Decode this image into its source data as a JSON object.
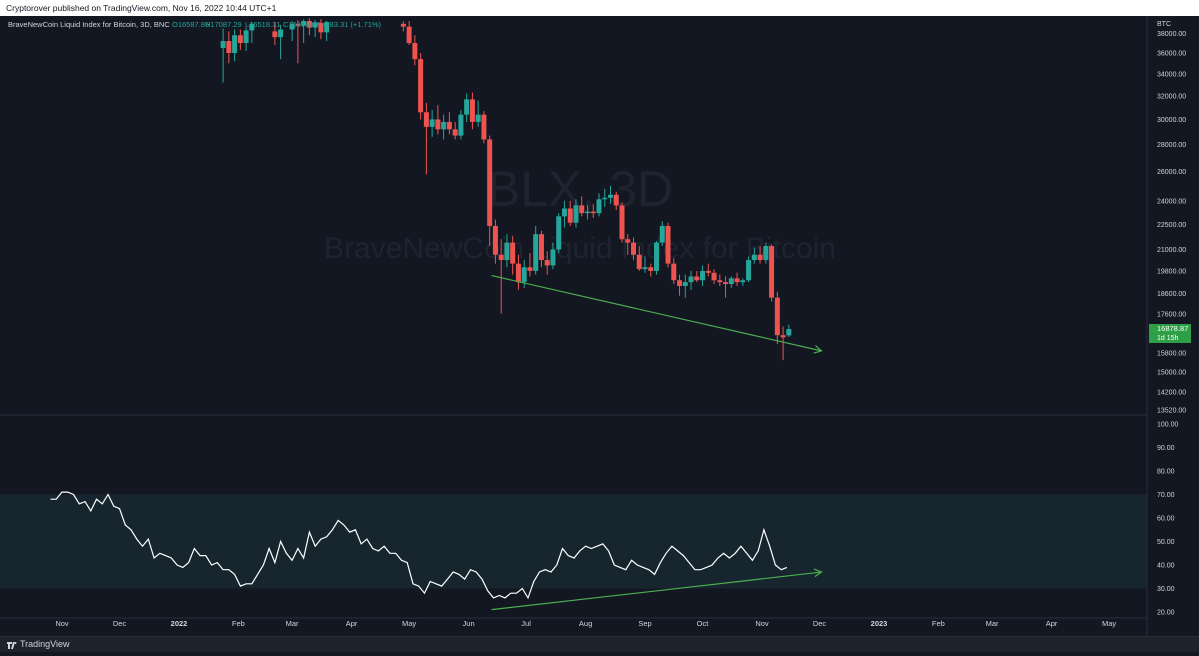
{
  "header": {
    "published_text": "Cryptorover published on TradingView.com, Nov 16, 2022 10:44 UTC+1"
  },
  "legend": {
    "symbol": "BraveNewCoin Liquid Index for Bitcoin, 3D, BNC",
    "open": "O16587.85",
    "high": "H17087.29",
    "low": "L16518.31",
    "close": "C16878.87",
    "change": "+283.31 (+1.71%)"
  },
  "watermark": {
    "ticker": "BLX, 3D",
    "name": "BraveNewCoin Liquid Index for Bitcoin"
  },
  "price_axis": {
    "currency": "BTC",
    "ticks": [
      "38000.00",
      "36000.00",
      "34000.00",
      "32000.00",
      "30000.00",
      "28000.00",
      "26000.00",
      "24000.00",
      "22500.00",
      "21000.00",
      "19800.00",
      "18600.00",
      "17600.00",
      "16800.00",
      "15800.00",
      "15000.00",
      "14200.00",
      "13520.00"
    ],
    "last_price": "16878.87",
    "countdown": "1d 15h"
  },
  "rsi_axis": {
    "ticks": [
      "100.00",
      "90.00",
      "80.00",
      "70.00",
      "60.00",
      "50.00",
      "40.00",
      "30.00",
      "20.00"
    ]
  },
  "time_axis": {
    "ticks": [
      "Nov",
      "Dec",
      "2022",
      "Feb",
      "Mar",
      "Apr",
      "May",
      "Jun",
      "Jul",
      "Aug",
      "Sep",
      "Oct",
      "Nov",
      "Dec",
      "2023",
      "Feb",
      "Mar",
      "Apr",
      "May"
    ]
  },
  "footer": {
    "brand": "TradingView"
  },
  "colors": {
    "up": "#26a69a",
    "down": "#ef5350",
    "green_line": "#4caf50",
    "rsi_band": "#17262e",
    "rsi_line": "#ffffff"
  },
  "chart_data": {
    "type": "candlestick",
    "title": "BraveNewCoin Liquid Index for Bitcoin, 3D, BNC",
    "y_scale": "log",
    "price_range": [
      13520,
      39000
    ],
    "candles": [
      [
        "2022-01-24",
        36500,
        38500,
        33200,
        37200
      ],
      [
        "2022-01-27",
        37200,
        38200,
        35000,
        36000
      ],
      [
        "2022-01-30",
        36000,
        38400,
        35200,
        37800
      ],
      [
        "2022-02-02",
        37800,
        38400,
        36300,
        37000
      ],
      [
        "2022-02-05",
        37000,
        38600,
        36200,
        38300
      ],
      [
        "2022-02-08",
        38300,
        39200,
        37000,
        39000
      ],
      [
        "2022-02-20",
        38200,
        39200,
        36800,
        37600
      ],
      [
        "2022-02-23",
        37600,
        38900,
        35400,
        38400
      ],
      [
        "2022-03-01",
        38400,
        39300,
        37200,
        39000
      ],
      [
        "2022-03-04",
        39000,
        39400,
        35000,
        38800
      ],
      [
        "2022-03-07",
        38800,
        39500,
        37000,
        39300
      ],
      [
        "2022-03-10",
        39300,
        39600,
        37800,
        38600
      ],
      [
        "2022-03-13",
        38600,
        39400,
        37600,
        39100
      ],
      [
        "2022-03-16",
        39100,
        39500,
        37400,
        38100
      ],
      [
        "2022-03-19",
        38100,
        39300,
        37200,
        39200
      ],
      [
        "2022-04-28",
        39000,
        39300,
        38200,
        38700
      ],
      [
        "2022-05-01",
        38700,
        39300,
        36800,
        37000
      ],
      [
        "2022-05-04",
        37000,
        37800,
        34800,
        35400
      ],
      [
        "2022-05-07",
        35400,
        36000,
        30000,
        30600
      ],
      [
        "2022-05-10",
        30600,
        31400,
        25800,
        29400
      ],
      [
        "2022-05-13",
        29400,
        30800,
        28600,
        30000
      ],
      [
        "2022-05-16",
        30000,
        31200,
        28800,
        29200
      ],
      [
        "2022-05-19",
        29200,
        30400,
        28400,
        29800
      ],
      [
        "2022-05-22",
        29800,
        30600,
        28800,
        29200
      ],
      [
        "2022-05-25",
        29200,
        29800,
        28400,
        28700
      ],
      [
        "2022-05-28",
        28700,
        30800,
        28400,
        30400
      ],
      [
        "2022-05-31",
        30400,
        32200,
        29800,
        31700
      ],
      [
        "2022-06-03",
        31700,
        32300,
        29200,
        29800
      ],
      [
        "2022-06-06",
        29800,
        31600,
        29400,
        30400
      ],
      [
        "2022-06-09",
        30400,
        30700,
        28100,
        28400
      ],
      [
        "2022-06-12",
        28400,
        28700,
        21200,
        22400
      ],
      [
        "2022-06-15",
        22400,
        22800,
        20200,
        20700
      ],
      [
        "2022-06-18",
        20700,
        21600,
        17600,
        20400
      ],
      [
        "2022-06-21",
        20400,
        21900,
        20000,
        21400
      ],
      [
        "2022-06-24",
        21400,
        21800,
        19600,
        20200
      ],
      [
        "2022-06-27",
        20200,
        20700,
        18800,
        19200
      ],
      [
        "2022-06-30",
        19200,
        20400,
        18900,
        20000
      ],
      [
        "2022-07-03",
        20000,
        20800,
        19500,
        19800
      ],
      [
        "2022-07-06",
        19800,
        22400,
        19600,
        21900
      ],
      [
        "2022-07-09",
        21900,
        22100,
        20000,
        20400
      ],
      [
        "2022-07-12",
        20400,
        20900,
        19600,
        20100
      ],
      [
        "2022-07-15",
        20100,
        21400,
        19900,
        21000
      ],
      [
        "2022-07-18",
        21000,
        23200,
        20800,
        23000
      ],
      [
        "2022-07-21",
        23000,
        24000,
        22300,
        23500
      ],
      [
        "2022-07-24",
        23500,
        24000,
        22400,
        22600
      ],
      [
        "2022-07-27",
        22600,
        24100,
        22300,
        23700
      ],
      [
        "2022-07-30",
        23700,
        24300,
        23000,
        23200
      ],
      [
        "2022-08-02",
        23200,
        23700,
        22800,
        23300
      ],
      [
        "2022-08-05",
        23300,
        23800,
        22900,
        23200
      ],
      [
        "2022-08-08",
        23200,
        24500,
        23000,
        24100
      ],
      [
        "2022-08-11",
        24100,
        24800,
        23600,
        24200
      ],
      [
        "2022-08-14",
        24200,
        25000,
        23800,
        24400
      ],
      [
        "2022-08-17",
        24400,
        24600,
        23400,
        23700
      ],
      [
        "2022-08-20",
        23700,
        23900,
        21400,
        21600
      ],
      [
        "2022-08-23",
        21600,
        21900,
        20700,
        21400
      ],
      [
        "2022-08-26",
        21400,
        21700,
        20400,
        20700
      ],
      [
        "2022-08-29",
        20700,
        21200,
        19800,
        19900
      ],
      [
        "2022-09-01",
        19900,
        20600,
        19700,
        20000
      ],
      [
        "2022-09-04",
        20000,
        20200,
        19500,
        19800
      ],
      [
        "2022-09-07",
        19800,
        21500,
        19600,
        21400
      ],
      [
        "2022-09-10",
        21400,
        22700,
        21200,
        22400
      ],
      [
        "2022-09-13",
        22400,
        22600,
        20000,
        20200
      ],
      [
        "2022-09-16",
        20200,
        20500,
        19100,
        19300
      ],
      [
        "2022-09-19",
        19300,
        19600,
        18500,
        19000
      ],
      [
        "2022-09-22",
        19000,
        19600,
        18400,
        19200
      ],
      [
        "2022-09-25",
        19200,
        19800,
        18800,
        19500
      ],
      [
        "2022-09-28",
        19500,
        19800,
        19200,
        19300
      ],
      [
        "2022-10-01",
        19300,
        20100,
        19000,
        19800
      ],
      [
        "2022-10-04",
        19800,
        20200,
        19500,
        19700
      ],
      [
        "2022-10-07",
        19700,
        19900,
        19100,
        19300
      ],
      [
        "2022-10-10",
        19300,
        19600,
        19000,
        19200
      ],
      [
        "2022-10-13",
        19200,
        19500,
        18400,
        19100
      ],
      [
        "2022-10-16",
        19100,
        19500,
        18900,
        19400
      ],
      [
        "2022-10-19",
        19400,
        19700,
        19000,
        19200
      ],
      [
        "2022-10-22",
        19200,
        19400,
        19000,
        19300
      ],
      [
        "2022-10-25",
        19300,
        20600,
        19200,
        20400
      ],
      [
        "2022-10-28",
        20400,
        21100,
        20200,
        20700
      ],
      [
        "2022-10-31",
        20700,
        21200,
        20200,
        20400
      ],
      [
        "2022-11-03",
        20400,
        21400,
        20200,
        21200
      ],
      [
        "2022-11-06",
        21200,
        21300,
        18200,
        18400
      ],
      [
        "2022-11-09",
        18400,
        18700,
        16200,
        16600
      ],
      [
        "2022-11-12",
        16600,
        17000,
        15500,
        16500
      ],
      [
        "2022-11-15",
        16588,
        17087,
        16518,
        16879
      ]
    ],
    "trendlines": [
      {
        "panel": "price",
        "from": [
          "2022-06-13",
          19550
        ],
        "to": [
          "2022-12-02",
          15900
        ]
      },
      {
        "panel": "rsi",
        "from": [
          "2022-06-13",
          21
        ],
        "to": [
          "2022-12-02",
          37
        ]
      }
    ],
    "rsi": {
      "band": [
        30,
        70
      ],
      "x": [
        "2021-10-26",
        "2021-10-29",
        "2021-11-01",
        "2021-11-04",
        "2021-11-07",
        "2021-11-10",
        "2021-11-13",
        "2021-11-16",
        "2021-11-19",
        "2021-11-22",
        "2021-11-25",
        "2021-11-28",
        "2021-12-01",
        "2021-12-04",
        "2021-12-07",
        "2021-12-10",
        "2021-12-13",
        "2021-12-16",
        "2021-12-19",
        "2021-12-22",
        "2021-12-25",
        "2021-12-28",
        "2021-12-31",
        "2022-01-03",
        "2022-01-06",
        "2022-01-09",
        "2022-01-12",
        "2022-01-15",
        "2022-01-18",
        "2022-01-21",
        "2022-01-24",
        "2022-01-27",
        "2022-01-30",
        "2022-02-02",
        "2022-02-05",
        "2022-02-08",
        "2022-02-11",
        "2022-02-14",
        "2022-02-17",
        "2022-02-20",
        "2022-02-23",
        "2022-02-26",
        "2022-03-01",
        "2022-03-04",
        "2022-03-07",
        "2022-03-10",
        "2022-03-13",
        "2022-03-16",
        "2022-03-19",
        "2022-03-22",
        "2022-03-25",
        "2022-03-28",
        "2022-03-31",
        "2022-04-03",
        "2022-04-06",
        "2022-04-09",
        "2022-04-12",
        "2022-04-15",
        "2022-04-18",
        "2022-04-21",
        "2022-04-24",
        "2022-04-27",
        "2022-04-30",
        "2022-05-03",
        "2022-05-06",
        "2022-05-09",
        "2022-05-12",
        "2022-05-15",
        "2022-05-18",
        "2022-05-21",
        "2022-05-24",
        "2022-05-27",
        "2022-05-30",
        "2022-06-02",
        "2022-06-05",
        "2022-06-08",
        "2022-06-11",
        "2022-06-14",
        "2022-06-17",
        "2022-06-20",
        "2022-06-23",
        "2022-06-26",
        "2022-06-29",
        "2022-07-02",
        "2022-07-05",
        "2022-07-08",
        "2022-07-11",
        "2022-07-14",
        "2022-07-17",
        "2022-07-20",
        "2022-07-23",
        "2022-07-26",
        "2022-07-29",
        "2022-08-01",
        "2022-08-04",
        "2022-08-07",
        "2022-08-10",
        "2022-08-13",
        "2022-08-16",
        "2022-08-19",
        "2022-08-22",
        "2022-08-25",
        "2022-08-28",
        "2022-08-31",
        "2022-09-03",
        "2022-09-06",
        "2022-09-09",
        "2022-09-12",
        "2022-09-15",
        "2022-09-18",
        "2022-09-21",
        "2022-09-24",
        "2022-09-27",
        "2022-09-30",
        "2022-10-03",
        "2022-10-06",
        "2022-10-09",
        "2022-10-12",
        "2022-10-15",
        "2022-10-18",
        "2022-10-21",
        "2022-10-24",
        "2022-10-27",
        "2022-10-30",
        "2022-11-02",
        "2022-11-05",
        "2022-11-08",
        "2022-11-11",
        "2022-11-14"
      ],
      "values": [
        68,
        68,
        71,
        71,
        70,
        66,
        67,
        63,
        68,
        66,
        70,
        65,
        64,
        57,
        55,
        51,
        48,
        51,
        43,
        45,
        44,
        43,
        40,
        39,
        41,
        47,
        44,
        44,
        40,
        41,
        38,
        38,
        36,
        31,
        32,
        32,
        36,
        40,
        47,
        41,
        50,
        45,
        42,
        47,
        43,
        54,
        48,
        51,
        52,
        55,
        59,
        57,
        54,
        55,
        49,
        51,
        47,
        46,
        48,
        45,
        45,
        42,
        41,
        32,
        31,
        28,
        33,
        32,
        31,
        34,
        37,
        36,
        34,
        38,
        37,
        34,
        29,
        26,
        27,
        26,
        28,
        28,
        30,
        26,
        33,
        37,
        38,
        37,
        40,
        47,
        44,
        43,
        46,
        48,
        47,
        48,
        49,
        46,
        40,
        39,
        38,
        42,
        40,
        39,
        38,
        36,
        41,
        45,
        48,
        46,
        44,
        41,
        38,
        38,
        39,
        40,
        43,
        45,
        43,
        45,
        48,
        45,
        42,
        46,
        55,
        48,
        40,
        38,
        39
      ]
    }
  }
}
